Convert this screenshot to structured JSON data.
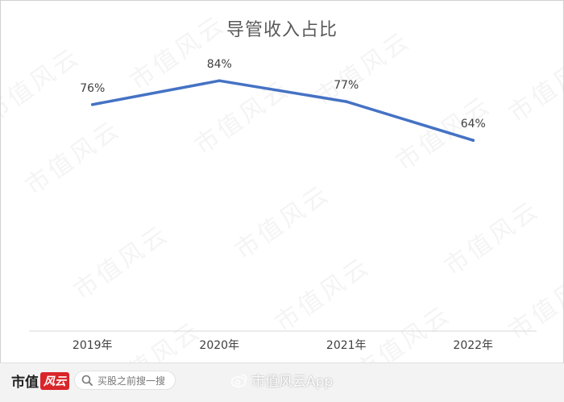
{
  "chart_data": {
    "type": "line",
    "title": "导管收入占比",
    "categories": [
      "2019年",
      "2020年",
      "2021年",
      "2022年"
    ],
    "series": [
      {
        "values": [
          76,
          84,
          77,
          64
        ],
        "labels": [
          "76%",
          "84%",
          "77%",
          "64%"
        ]
      }
    ],
    "ylim": [
      0,
      100
    ],
    "xlabel": "",
    "ylabel": "",
    "grid": false,
    "colors": {
      "line": "#4472c4",
      "axis": "#d9d9d9",
      "text": "#404040"
    }
  },
  "watermark_text": "市值风云",
  "footer": {
    "brand_name": "市值",
    "brand_seal": "风云",
    "search_placeholder": "买股之前搜一搜",
    "search_icon": "search-icon",
    "weibo_text": "市值风云App"
  }
}
